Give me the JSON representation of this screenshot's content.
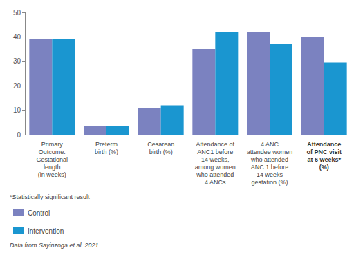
{
  "chart_data": {
    "type": "bar",
    "categories": [
      "Primary\nOutcome:\nGestational\nlength\n(in weeks)",
      "Preterm\nbirth (%)",
      "Cesarean\nbirth (%)",
      "Attendance of\nANC1 before\n14 weeks,\namong women\nwho attended\n4 ANCs",
      "4 ANC\nattendee women\nwho attended\nANC 1 before\n14 weeks\ngestation (%)",
      "Attendance\nof PNC visit\nat 6 weeks*\n(%)"
    ],
    "series": [
      {
        "name": "Control",
        "color": "#7b82c0",
        "values": [
          39,
          3.5,
          11,
          35,
          42,
          40
        ]
      },
      {
        "name": "Intervention",
        "color": "#1a96d0",
        "values": [
          39,
          3.5,
          12,
          42,
          37,
          29.5
        ]
      }
    ],
    "ylim": [
      0,
      50
    ],
    "yticks": [
      0,
      10,
      20,
      30,
      40,
      50
    ],
    "grid": false,
    "legend": "bottom left",
    "annotations": [
      "*Statistically significant result",
      "Data from Sayinzoga et al. 2021."
    ]
  }
}
